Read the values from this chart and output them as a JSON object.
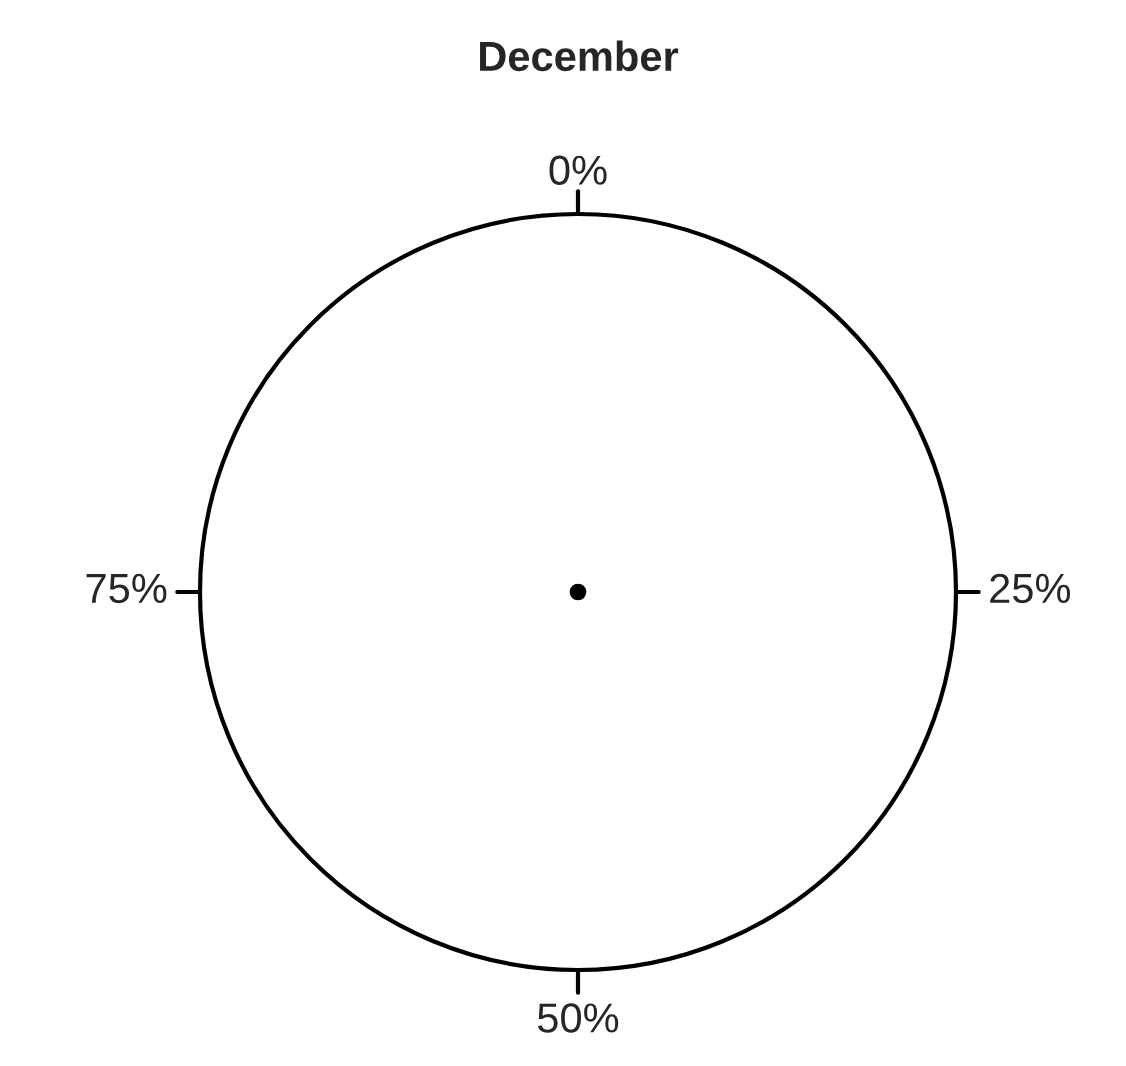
{
  "chart_data": {
    "type": "pie",
    "title": "December",
    "categories": [
      null
    ],
    "values": [
      100
    ],
    "colors": [
      "#ffffff"
    ],
    "annotations": [
      "0%",
      "25%",
      "50%",
      "75%"
    ]
  }
}
